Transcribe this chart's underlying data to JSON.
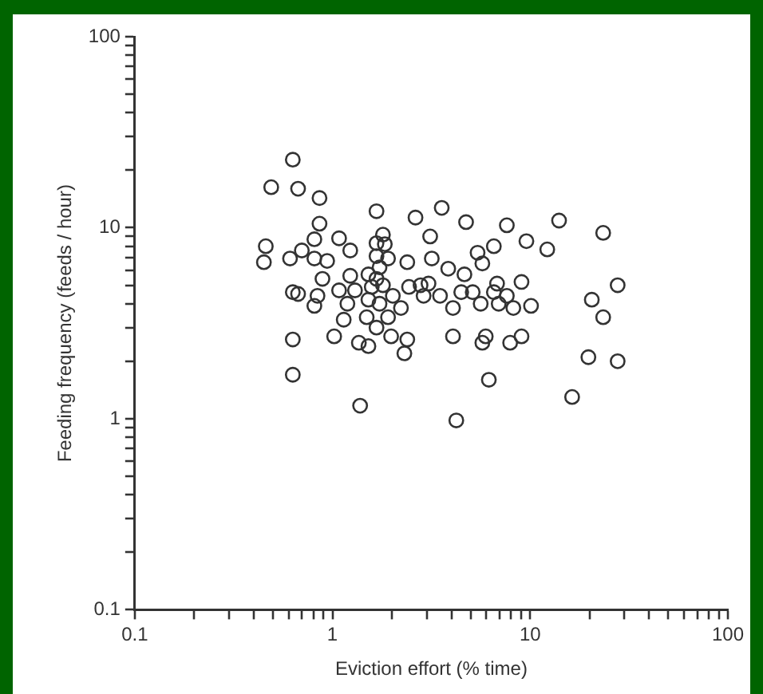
{
  "chart_data": {
    "type": "scatter",
    "xlabel": "Eviction effort (% time)",
    "ylabel": "Feeding frequency (feeds / hour)",
    "log": "xy",
    "grid": false,
    "marker": "circle",
    "legend": false,
    "xlim": [
      0.1,
      100
    ],
    "ylim": [
      0.1,
      100
    ],
    "xticks": [
      0.1,
      {
        "value": 0.2,
        "label": null
      },
      {
        "value": 0.3,
        "label": null
      },
      {
        "value": 0.4,
        "label": null
      },
      {
        "value": 0.5,
        "label": null
      },
      {
        "value": 0.6,
        "label": null
      },
      {
        "value": 0.7,
        "label": null
      },
      {
        "value": 0.8,
        "label": null
      },
      {
        "value": 0.9,
        "label": null
      },
      1,
      {
        "value": 2,
        "label": null
      },
      {
        "value": 3,
        "label": null
      },
      {
        "value": 4,
        "label": null
      },
      {
        "value": 5,
        "label": null
      },
      {
        "value": 6,
        "label": null
      },
      {
        "value": 7,
        "label": null
      },
      {
        "value": 8,
        "label": null
      },
      {
        "value": 9,
        "label": null
      },
      10,
      {
        "value": 20,
        "label": null
      },
      {
        "value": 30,
        "label": null
      },
      {
        "value": 40,
        "label": null
      },
      {
        "value": 50,
        "label": null
      },
      {
        "value": 60,
        "label": null
      },
      {
        "value": 70,
        "label": null
      },
      {
        "value": 80,
        "label": null
      },
      {
        "value": 90,
        "label": null
      },
      100
    ],
    "yticks": [
      0.1,
      {
        "value": 0.2,
        "label": null
      },
      {
        "value": 0.3,
        "label": null
      },
      {
        "value": 0.4,
        "label": null
      },
      {
        "value": 0.5,
        "label": null
      },
      {
        "value": 0.6,
        "label": null
      },
      {
        "value": 0.7,
        "label": null
      },
      {
        "value": 0.8,
        "label": null
      },
      {
        "value": 0.9,
        "label": null
      },
      1,
      {
        "value": 2,
        "label": null
      },
      {
        "value": 3,
        "label": null
      },
      {
        "value": 4,
        "label": null
      },
      {
        "value": 5,
        "label": null
      },
      {
        "value": 6,
        "label": null
      },
      {
        "value": 7,
        "label": null
      },
      {
        "value": 8,
        "label": null
      },
      {
        "value": 9,
        "label": null
      },
      10,
      {
        "value": 20,
        "label": null
      },
      {
        "value": 30,
        "label": null
      },
      {
        "value": 40,
        "label": null
      },
      {
        "value": 50,
        "label": null
      },
      {
        "value": 60,
        "label": null
      },
      {
        "value": 70,
        "label": null
      },
      {
        "value": 80,
        "label": null
      },
      {
        "value": 90,
        "label": null
      },
      100
    ],
    "series": [
      {
        "color": "#333333",
        "x": [
          0.45,
          0.46,
          0.49,
          0.63,
          0.67,
          0.61,
          0.7,
          0.63,
          0.67,
          0.63,
          0.63,
          0.86,
          0.86,
          0.81,
          1.08,
          1.23,
          0.81,
          0.94,
          0.89,
          0.84,
          0.81,
          1.23,
          1.08,
          1.3,
          1.19,
          1.14,
          1.02,
          1.36,
          1.52,
          1.38,
          1.67,
          1.8,
          1.67,
          1.84,
          1.67,
          1.91,
          1.73,
          1.52,
          1.67,
          1.58,
          1.8,
          2.02,
          1.52,
          1.73,
          2.22,
          1.49,
          1.91,
          1.67,
          1.98,
          2.39,
          2.31,
          2.39,
          2.63,
          3.57,
          3.12,
          3.18,
          3.85,
          2.44,
          2.79,
          3.06,
          3.5,
          2.89,
          4.07,
          4.07,
          4.74,
          5.42,
          5.73,
          6.55,
          4.65,
          4.48,
          5.12,
          5.62,
          6.8,
          6.55,
          6.93,
          5.96,
          5.73,
          7.92,
          6.18,
          4.23,
          7.62,
          14.0,
          9.57,
          12.2,
          23.4,
          9.04,
          7.62,
          8.22,
          10.1,
          20.5,
          27.7,
          23.4,
          9.04,
          19.7,
          27.7,
          16.3
        ],
        "values": [
          6.6,
          8.0,
          16.3,
          22.7,
          16.0,
          6.9,
          7.6,
          4.6,
          4.5,
          2.6,
          1.7,
          14.3,
          10.5,
          8.7,
          8.8,
          7.6,
          6.9,
          6.7,
          5.4,
          4.4,
          3.9,
          5.6,
          4.7,
          4.7,
          4.0,
          3.3,
          2.7,
          2.5,
          2.4,
          1.17,
          12.2,
          9.2,
          8.3,
          8.2,
          7.1,
          6.9,
          6.2,
          5.7,
          5.4,
          4.9,
          5.0,
          4.4,
          4.2,
          4.0,
          3.8,
          3.4,
          3.4,
          3.0,
          2.7,
          2.6,
          2.2,
          6.6,
          11.3,
          12.7,
          9.0,
          6.9,
          6.1,
          4.9,
          5.0,
          5.1,
          4.4,
          4.4,
          3.8,
          2.7,
          10.7,
          7.4,
          6.5,
          8.0,
          5.7,
          4.6,
          4.6,
          4.0,
          5.1,
          4.6,
          4.0,
          2.7,
          2.5,
          2.5,
          1.6,
          0.98,
          10.3,
          10.9,
          8.5,
          7.7,
          9.4,
          5.2,
          4.4,
          3.8,
          3.9,
          4.2,
          5.0,
          3.4,
          2.7,
          2.1,
          2.0,
          1.3
        ]
      }
    ]
  }
}
